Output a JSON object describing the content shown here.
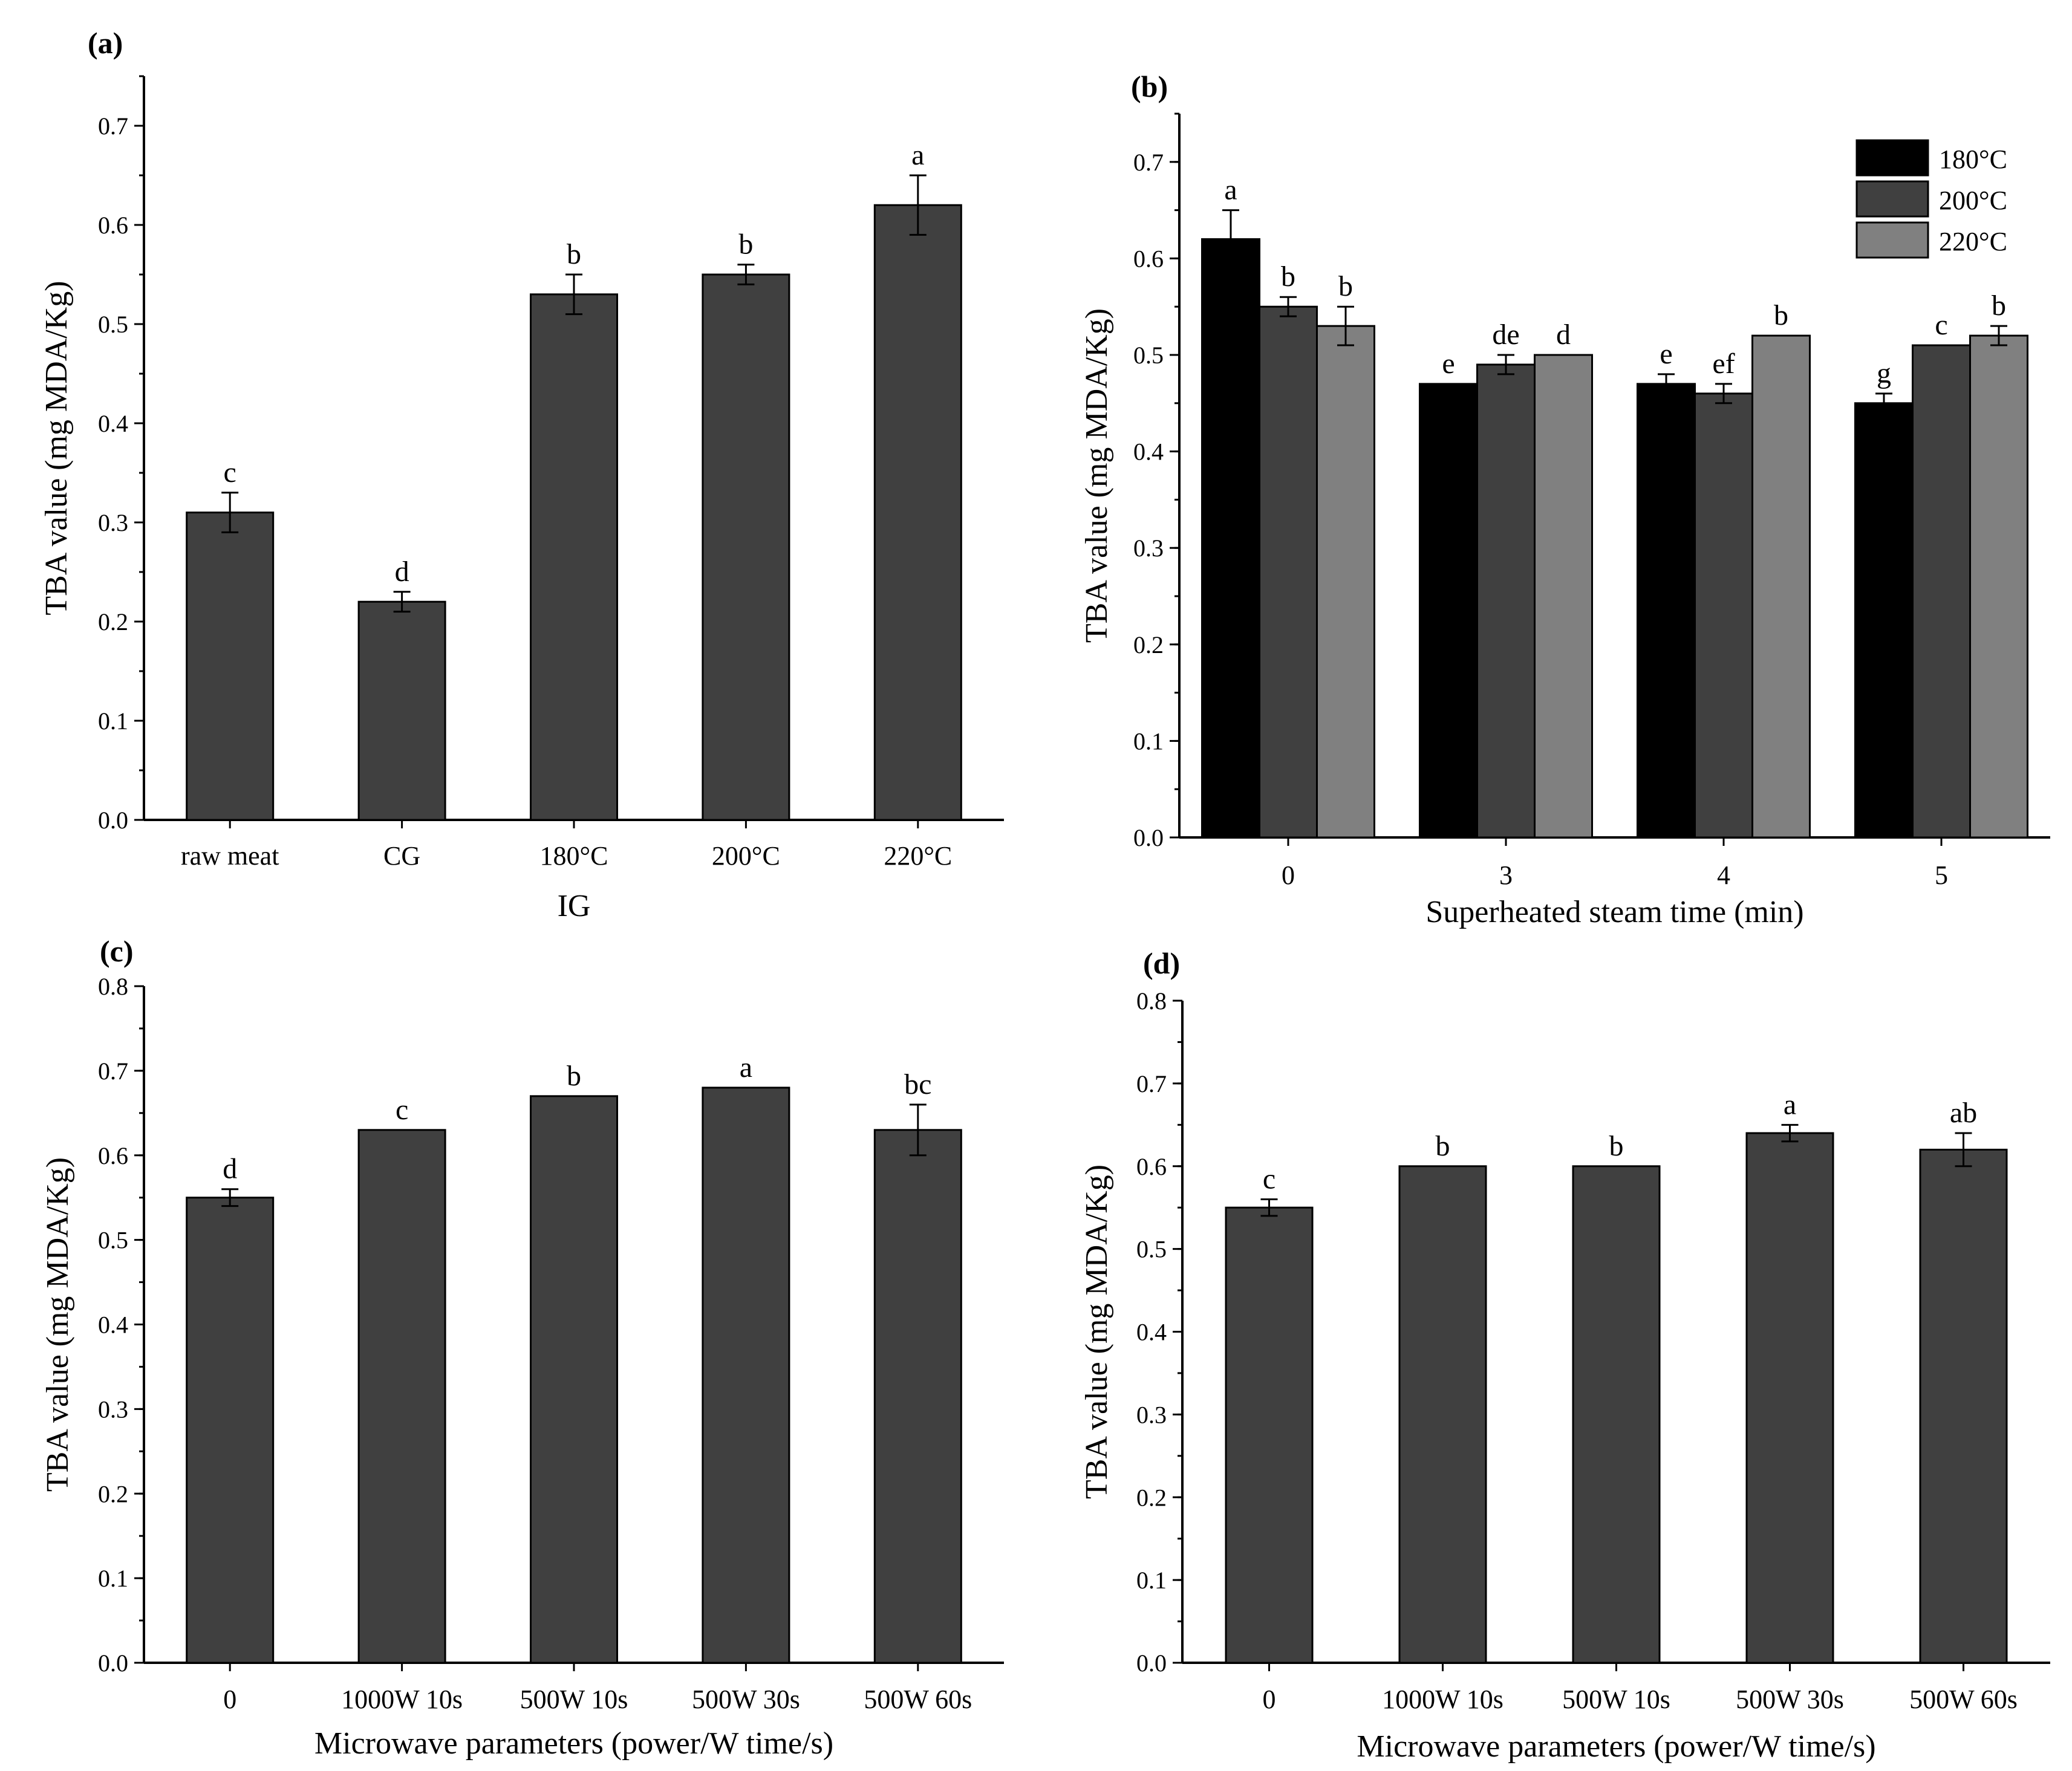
{
  "chart_data": [
    {
      "panel_label": "(a)",
      "type": "bar",
      "categories": [
        "raw meat",
        "CG",
        "180°C",
        "200°C",
        "220°C"
      ],
      "values": [
        0.31,
        0.22,
        0.53,
        0.55,
        0.62
      ],
      "errors": [
        0.02,
        0.01,
        0.02,
        0.01,
        0.03
      ],
      "significance": [
        "c",
        "d",
        "b",
        "b",
        "a"
      ],
      "xlabel": "IG",
      "ylabel": "TBA value (mg MDA/Kg)",
      "ylim": [
        0,
        0.75
      ],
      "yticks": [
        "0.0",
        "0.1",
        "0.2",
        "0.3",
        "0.4",
        "0.5",
        "0.6",
        "0.7"
      ],
      "bar_color": "#404040"
    },
    {
      "panel_label": "(b)",
      "type": "bar",
      "categories": [
        "0",
        "3",
        "4",
        "5"
      ],
      "series": [
        {
          "name": "180°C",
          "color": "#000000",
          "values": [
            0.62,
            0.47,
            0.47,
            0.45
          ],
          "errors": [
            0.03,
            0.0,
            0.01,
            0.01
          ],
          "significance": [
            "a",
            "e",
            "e",
            "g"
          ]
        },
        {
          "name": "200°C",
          "color": "#404040",
          "values": [
            0.55,
            0.49,
            0.46,
            0.51
          ],
          "errors": [
            0.01,
            0.01,
            0.01,
            0.0
          ],
          "significance": [
            "b",
            "de",
            "ef",
            "c"
          ]
        },
        {
          "name": "220°C",
          "color": "#808080",
          "values": [
            0.53,
            0.5,
            0.52,
            0.52
          ],
          "errors": [
            0.02,
            0.0,
            0.0,
            0.01
          ],
          "significance": [
            "b",
            "d",
            "b",
            "b"
          ]
        }
      ],
      "xlabel": "Superheated steam time (min)",
      "ylabel": "TBA value (mg MDA/Kg)",
      "ylim": [
        0,
        0.75
      ],
      "yticks": [
        "0.0",
        "0.1",
        "0.2",
        "0.3",
        "0.4",
        "0.5",
        "0.6",
        "0.7"
      ],
      "legend": "top-right"
    },
    {
      "panel_label": "(c)",
      "type": "bar",
      "categories": [
        "0",
        "1000W 10s",
        "500W 10s",
        "500W 30s",
        "500W 60s"
      ],
      "values": [
        0.55,
        0.63,
        0.67,
        0.68,
        0.63
      ],
      "errors": [
        0.01,
        0.0,
        0.0,
        0.0,
        0.03
      ],
      "significance": [
        "d",
        "c",
        "b",
        "a",
        "bc"
      ],
      "xlabel": "Microwave parameters (power/W time/s)",
      "ylabel": "TBA value (mg MDA/Kg)",
      "ylim": [
        0,
        0.8
      ],
      "yticks": [
        "0.0",
        "0.1",
        "0.2",
        "0.3",
        "0.4",
        "0.5",
        "0.6",
        "0.7",
        "0.8"
      ],
      "bar_color": "#404040"
    },
    {
      "panel_label": "(d)",
      "type": "bar",
      "categories": [
        "0",
        "1000W 10s",
        "500W 10s",
        "500W 30s",
        "500W 60s"
      ],
      "values": [
        0.55,
        0.6,
        0.6,
        0.64,
        0.62
      ],
      "errors": [
        0.01,
        0.0,
        0.0,
        0.01,
        0.02
      ],
      "significance": [
        "c",
        "b",
        "b",
        "a",
        "ab"
      ],
      "xlabel": "Microwave parameters (power/W time/s)",
      "ylabel": "TBA value (mg MDA/Kg)",
      "ylim": [
        0,
        0.8
      ],
      "yticks": [
        "0.0",
        "0.1",
        "0.2",
        "0.3",
        "0.4",
        "0.5",
        "0.6",
        "0.7",
        "0.8"
      ],
      "bar_color": "#404040"
    }
  ]
}
